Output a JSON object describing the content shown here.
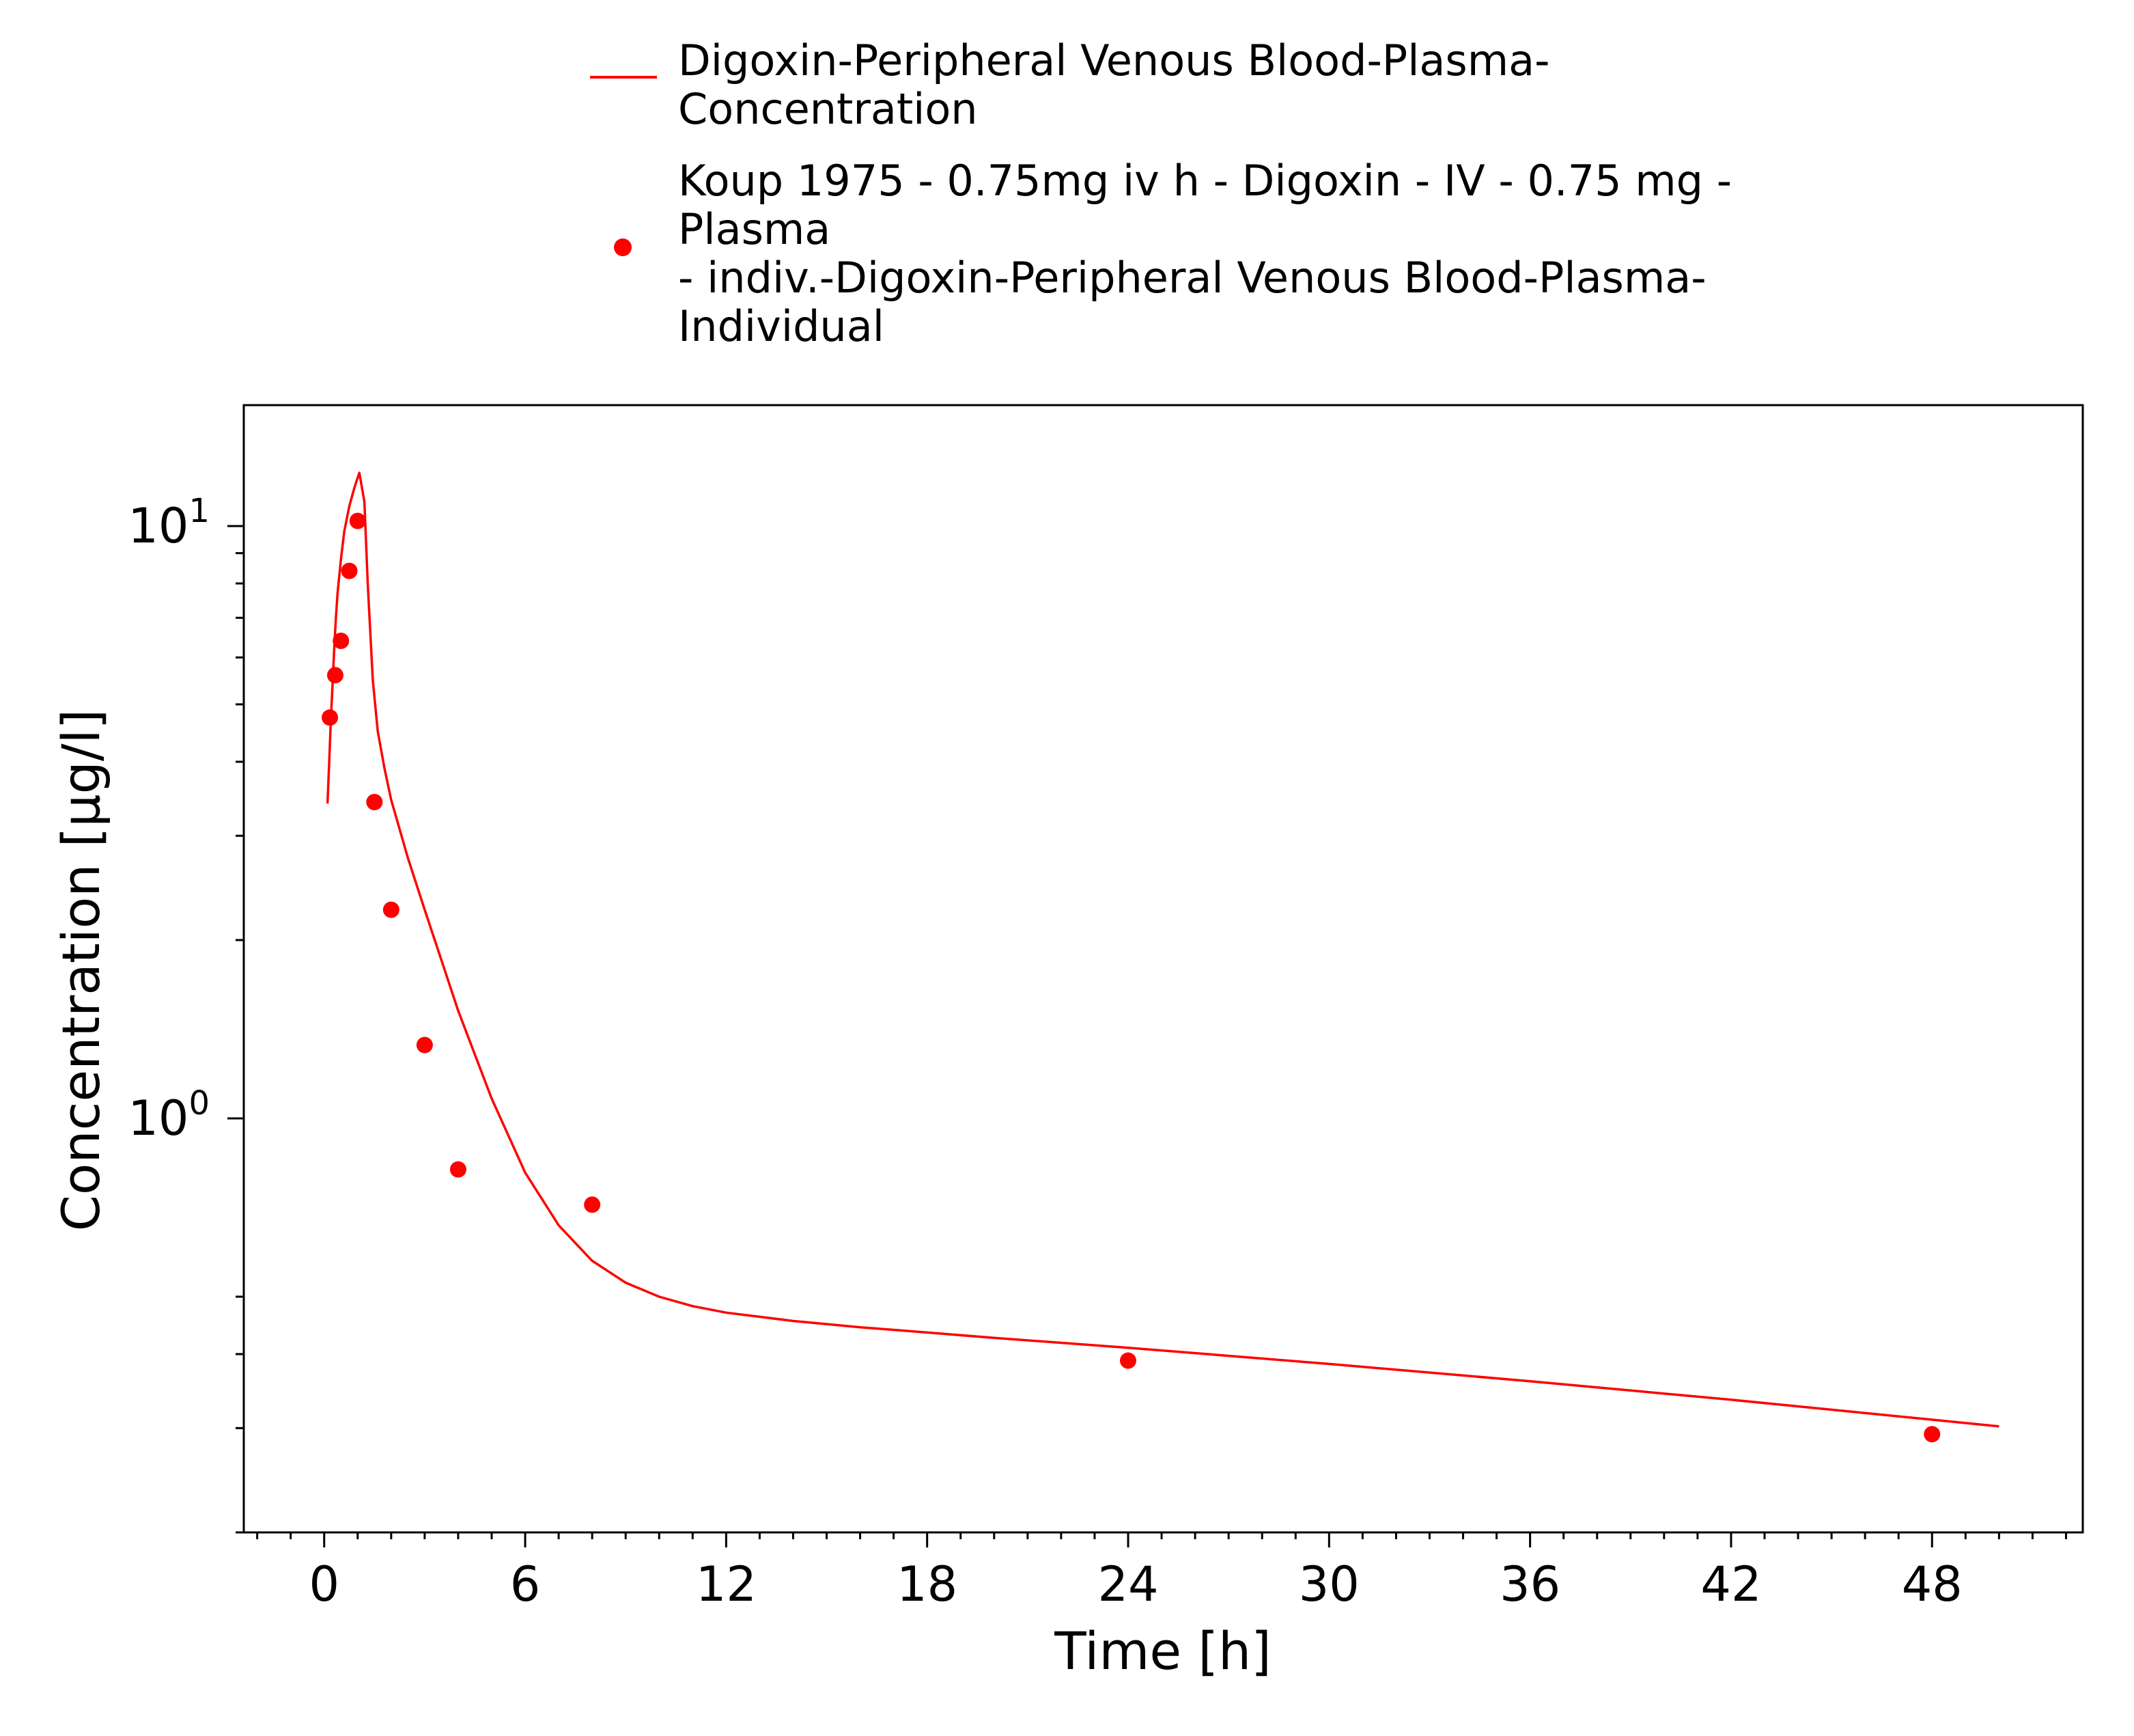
{
  "chart_data": {
    "type": "line",
    "xlabel": "Time [h]",
    "ylabel": "Concentration [µg/l]",
    "xlim": [
      -2.4,
      52.5
    ],
    "ylim": [
      0.2,
      16
    ],
    "yscale": "log",
    "xticks": [
      0,
      6,
      12,
      18,
      24,
      30,
      36,
      42,
      48
    ],
    "x_minor_step": 1,
    "yticks": [
      {
        "value": 1,
        "base": "10",
        "exp": "0"
      },
      {
        "value": 10,
        "base": "10",
        "exp": "1"
      }
    ],
    "y_minor": [
      0.2,
      0.3,
      0.4,
      0.5,
      2,
      3,
      4,
      5,
      6,
      7,
      8,
      9
    ],
    "grid": false,
    "legend_position": "top",
    "series": [
      {
        "name": "Digoxin-Peripheral Venous Blood-Plasma-Concentration",
        "legend_lines": [
          "Digoxin-Peripheral Venous Blood-Plasma-",
          "Concentration"
        ],
        "kind": "line",
        "color": "#ff0000",
        "x": [
          0.1,
          0.15,
          0.2,
          0.25,
          0.3,
          0.35,
          0.4,
          0.5,
          0.6,
          0.75,
          0.9,
          1.05,
          1.2,
          1.3,
          1.45,
          1.6,
          1.8,
          2.0,
          2.5,
          3.0,
          3.5,
          4.0,
          5.0,
          6.0,
          7.0,
          8.0,
          9.0,
          10.0,
          11.0,
          12.0,
          14.0,
          16.0,
          18.0,
          20.0,
          24.0,
          30.0,
          36.0,
          42.0,
          48.0,
          50.0
        ],
        "y": [
          3.4,
          4.0,
          4.7,
          5.4,
          6.2,
          7.0,
          7.7,
          8.8,
          9.8,
          10.8,
          11.6,
          12.3,
          11.0,
          8.0,
          5.5,
          4.5,
          3.9,
          3.45,
          2.75,
          2.25,
          1.85,
          1.52,
          1.08,
          0.81,
          0.66,
          0.575,
          0.528,
          0.5,
          0.482,
          0.47,
          0.455,
          0.444,
          0.435,
          0.426,
          0.41,
          0.385,
          0.36,
          0.335,
          0.31,
          0.302
        ]
      },
      {
        "name": "Koup 1975 - 0.75mg iv h - Digoxin - IV - 0.75 mg - Plasma - indiv.-Digoxin-Peripheral Venous Blood-Plasma-Individual",
        "legend_lines": [
          "Koup 1975 - 0.75mg iv h - Digoxin - IV - 0.75 mg -",
          "Plasma",
          "- indiv.-Digoxin-Peripheral Venous Blood-Plasma-",
          "Individual"
        ],
        "kind": "scatter",
        "color": "#ff0000",
        "x": [
          0.17,
          0.33,
          0.5,
          0.75,
          1.0,
          1.5,
          2.0,
          3.0,
          4.0,
          8.0,
          24.0,
          48.0
        ],
        "y": [
          4.75,
          5.6,
          6.4,
          8.4,
          10.2,
          3.42,
          2.25,
          1.33,
          0.82,
          0.715,
          0.39,
          0.293
        ]
      }
    ]
  }
}
